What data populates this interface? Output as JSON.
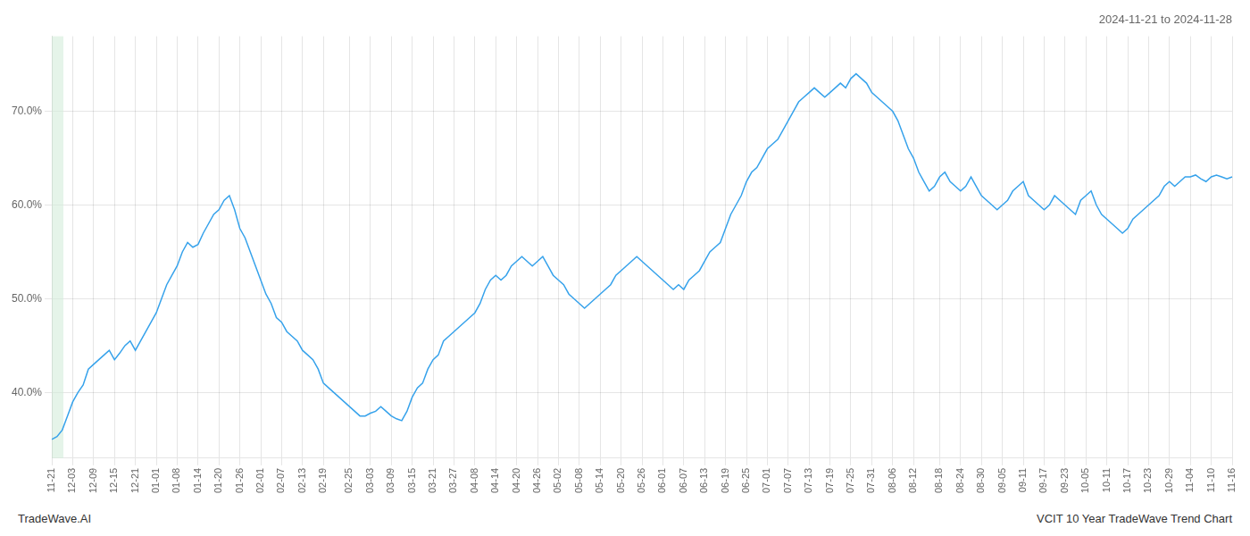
{
  "chart_data": {
    "type": "line",
    "title": "2024-11-21 to 2024-11-28",
    "annotations": [
      "TradeWave.AI",
      "VCIT 10 Year TradeWave Trend Chart"
    ],
    "categories": [
      "11-21",
      null,
      null,
      null,
      "12-03",
      null,
      null,
      null,
      "12-09",
      null,
      null,
      null,
      "12-15",
      null,
      null,
      null,
      "12-21",
      null,
      null,
      null,
      "01-01",
      null,
      null,
      null,
      "01-08",
      null,
      null,
      null,
      "01-14",
      null,
      null,
      null,
      "01-20",
      null,
      null,
      null,
      "01-26",
      null,
      null,
      null,
      "02-01",
      null,
      null,
      null,
      "02-07",
      null,
      null,
      null,
      "02-13",
      null,
      null,
      null,
      "02-19",
      null,
      null,
      null,
      null,
      "02-25",
      null,
      null,
      null,
      "03-03",
      null,
      null,
      null,
      "03-09",
      null,
      null,
      null,
      "03-15",
      null,
      null,
      null,
      "03-21",
      null,
      null,
      null,
      "03-27",
      null,
      null,
      null,
      "04-08",
      null,
      null,
      null,
      "04-14",
      null,
      null,
      null,
      "04-20",
      null,
      null,
      null,
      "04-26",
      null,
      null,
      null,
      "05-02",
      null,
      null,
      null,
      "05-08",
      null,
      null,
      null,
      "05-14",
      null,
      null,
      null,
      "05-20",
      null,
      null,
      null,
      "05-26",
      null,
      null,
      null,
      "06-01",
      null,
      null,
      null,
      "06-07",
      null,
      null,
      null,
      "06-13",
      null,
      null,
      null,
      "06-19",
      null,
      null,
      null,
      "06-25",
      null,
      null,
      null,
      "07-01",
      null,
      null,
      null,
      "07-07",
      null,
      null,
      null,
      "07-13",
      null,
      null,
      null,
      "07-19",
      null,
      null,
      null,
      "07-25",
      null,
      null,
      null,
      "07-31",
      null,
      null,
      null,
      "08-06",
      null,
      null,
      null,
      "08-12",
      null,
      null,
      null,
      null,
      "08-18",
      null,
      null,
      null,
      "08-24",
      null,
      null,
      null,
      "08-30",
      null,
      null,
      null,
      "09-05",
      null,
      null,
      null,
      "09-11",
      null,
      null,
      null,
      "09-17",
      null,
      null,
      null,
      "09-23",
      null,
      null,
      null,
      "10-05",
      null,
      null,
      null,
      "10-11",
      null,
      null,
      null,
      "10-17",
      null,
      null,
      null,
      "10-23",
      null,
      null,
      null,
      "10-29",
      null,
      null,
      null,
      "11-04",
      null,
      null,
      null,
      "11-10",
      null,
      null,
      null,
      "11-16"
    ],
    "values": [
      35.0,
      35.3,
      36.0,
      37.5,
      39.0,
      40.0,
      40.8,
      42.5,
      43.0,
      43.5,
      44.0,
      44.5,
      43.5,
      44.2,
      45.0,
      45.5,
      44.5,
      45.5,
      46.5,
      47.5,
      48.5,
      50.0,
      51.5,
      52.5,
      53.5,
      55.0,
      56.0,
      55.5,
      55.8,
      57.0,
      58.0,
      59.0,
      59.5,
      60.5,
      61.0,
      59.5,
      57.5,
      56.5,
      55.0,
      53.5,
      52.0,
      50.5,
      49.5,
      48.0,
      47.5,
      46.5,
      46.0,
      45.5,
      44.5,
      44.0,
      43.5,
      42.5,
      41.0,
      40.5,
      40.0,
      39.5,
      39.0,
      38.5,
      38.0,
      37.5,
      37.5,
      37.8,
      38.0,
      38.5,
      38.0,
      37.5,
      37.2,
      37.0,
      38.0,
      39.5,
      40.5,
      41.0,
      42.5,
      43.5,
      44.0,
      45.5,
      46.0,
      46.5,
      47.0,
      47.5,
      48.0,
      48.5,
      49.5,
      51.0,
      52.0,
      52.5,
      52.0,
      52.5,
      53.5,
      54.0,
      54.5,
      54.0,
      53.5,
      54.0,
      54.5,
      53.5,
      52.5,
      52.0,
      51.5,
      50.5,
      50.0,
      49.5,
      49.0,
      49.5,
      50.0,
      50.5,
      51.0,
      51.5,
      52.5,
      53.0,
      53.5,
      54.0,
      54.5,
      54.0,
      53.5,
      53.0,
      52.5,
      52.0,
      51.5,
      51.0,
      51.5,
      51.0,
      52.0,
      52.5,
      53.0,
      54.0,
      55.0,
      55.5,
      56.0,
      57.5,
      59.0,
      60.0,
      61.0,
      62.5,
      63.5,
      64.0,
      65.0,
      66.0,
      66.5,
      67.0,
      68.0,
      69.0,
      70.0,
      71.0,
      71.5,
      72.0,
      72.5,
      72.0,
      71.5,
      72.0,
      72.5,
      73.0,
      72.5,
      73.5,
      74.0,
      73.5,
      73.0,
      72.0,
      71.5,
      71.0,
      70.5,
      70.0,
      69.0,
      67.5,
      66.0,
      65.0,
      63.5,
      62.5,
      61.5,
      62.0,
      63.0,
      63.5,
      62.5,
      62.0,
      61.5,
      62.0,
      63.0,
      62.0,
      61.0,
      60.5,
      60.0,
      59.5,
      60.0,
      60.5,
      61.5,
      62.0,
      62.5,
      61.0,
      60.5,
      60.0,
      59.5,
      60.0,
      61.0,
      60.5,
      60.0,
      59.5,
      59.0,
      60.5,
      61.0,
      61.5,
      60.0,
      59.0,
      58.5,
      58.0,
      57.5,
      57.0,
      57.5,
      58.5,
      59.0,
      59.5,
      60.0,
      60.5,
      61.0,
      62.0,
      62.5,
      62.0,
      62.5,
      63.0,
      63.0,
      63.2,
      62.8,
      62.5,
      63.0,
      63.2,
      63.0,
      62.8,
      63.0
    ],
    "highlight": {
      "x": [
        0,
        2.2196428571
      ],
      "color": "#d4edda"
    },
    "ylim": [
      33,
      78
    ],
    "yticks": [
      {
        "value": 40.0,
        "label": "40.0%"
      },
      {
        "value": 50.0,
        "label": "50.0%"
      },
      {
        "value": 60.0,
        "label": "60.0%"
      },
      {
        "value": 70.0,
        "label": "70.0%"
      }
    ],
    "grid": true
  }
}
